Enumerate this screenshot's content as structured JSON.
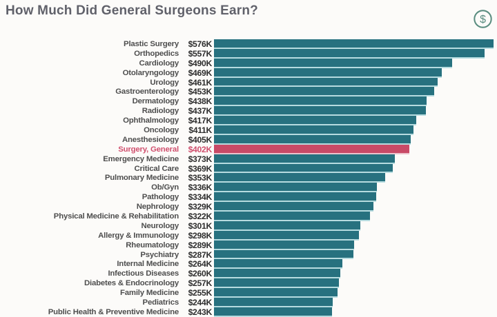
{
  "header": {
    "title": "How Much Did General Surgeons Earn?",
    "icon": "dollar-circle-icon",
    "icon_symbol": "$",
    "icon_color": "#5a8d80",
    "title_color": "#60616a"
  },
  "chart_data": {
    "type": "bar",
    "orientation": "horizontal",
    "title": "How Much Did General Surgeons Earn?",
    "xlabel": "",
    "ylabel": "",
    "xlim": [
      0,
      576
    ],
    "grid": false,
    "legend": "none",
    "bar_color": "#27717f",
    "bar_gap_color": "#b7dce0",
    "highlight_color": "#c84a67",
    "highlight_text_color": "#d0506e",
    "highlight_index": 11,
    "categories": [
      "Plastic Surgery",
      "Orthopedics",
      "Cardiology",
      "Otolaryngology",
      "Urology",
      "Gastroenterology",
      "Dermatology",
      "Radiology",
      "Ophthalmology",
      "Oncology",
      "Anesthesiology",
      "Surgery, General",
      "Emergency Medicine",
      "Critical Care",
      "Pulmonary Medicine",
      "Ob/Gyn",
      "Pathology",
      "Nephrology",
      "Physical Medicine & Rehabilitation",
      "Neurology",
      "Allergy & Immunology",
      "Rheumatology",
      "Psychiatry",
      "Internal Medicine",
      "Infectious Diseases",
      "Diabetes & Endocrinology",
      "Family Medicine",
      "Pediatrics",
      "Public Health & Preventive Medicine"
    ],
    "values": [
      576,
      557,
      490,
      469,
      461,
      453,
      438,
      437,
      417,
      411,
      405,
      402,
      373,
      369,
      353,
      336,
      334,
      329,
      322,
      301,
      298,
      289,
      287,
      264,
      260,
      257,
      255,
      244,
      243
    ],
    "value_labels": [
      "$576K",
      "$557K",
      "$490K",
      "$469K",
      "$461K",
      "$453K",
      "$438K",
      "$437K",
      "$417K",
      "$411K",
      "$405K",
      "$402K",
      "$373K",
      "$369K",
      "$353K",
      "$336K",
      "$334K",
      "$329K",
      "$322K",
      "$301K",
      "$298K",
      "$289K",
      "$287K",
      "$264K",
      "$260K",
      "$257K",
      "$255K",
      "$244K",
      "$243K"
    ],
    "units": "USD thousands per year"
  }
}
